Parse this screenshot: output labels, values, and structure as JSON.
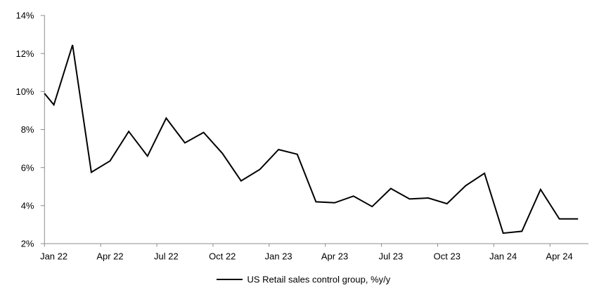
{
  "chart_data": {
    "type": "line",
    "title": "",
    "months": [
      "Jan 22",
      "Feb 22",
      "Mar 22",
      "Apr 22",
      "May 22",
      "Jun 22",
      "Jul 22",
      "Aug 22",
      "Sep 22",
      "Oct 22",
      "Nov 22",
      "Dec 22",
      "Jan 23",
      "Feb 23",
      "Mar 23",
      "Apr 23",
      "May 23",
      "Jun 23",
      "Jul 23",
      "Aug 23",
      "Sep 23",
      "Oct 23",
      "Nov 23",
      "Dec 23",
      "Jan 24",
      "Feb 24",
      "Mar 24",
      "Apr 24",
      "May 24"
    ],
    "series": [
      {
        "name": "US Retail sales control group, %y/y",
        "color": "#000000",
        "values": [
          9.3,
          12.45,
          5.75,
          6.35,
          7.9,
          6.6,
          8.6,
          7.3,
          7.85,
          6.75,
          5.3,
          5.9,
          6.95,
          6.7,
          4.2,
          4.15,
          4.5,
          3.95,
          4.9,
          4.35,
          4.4,
          4.1,
          5.05,
          5.7,
          2.55,
          2.65,
          4.85,
          3.3,
          3.3
        ]
      }
    ],
    "clipped_edge_value": 9.9,
    "x_tick_labels": [
      "Jan 22",
      "Apr 22",
      "Jul 22",
      "Oct 22",
      "Jan 23",
      "Apr 23",
      "Jul 23",
      "Oct 23",
      "Jan 24",
      "Apr 24"
    ],
    "y_tick_labels": [
      "2%",
      "4%",
      "6%",
      "8%",
      "10%",
      "12%",
      "14%"
    ],
    "ylim": [
      2,
      14
    ],
    "y_tick_step": 2,
    "x_tick_every_months": 3,
    "grid": false,
    "legend": {
      "position": "bottom-center",
      "label": "US Retail sales control group, %y/y"
    },
    "colors": {
      "line": "#000000",
      "axis": "#8c8c8c",
      "text": "#000000",
      "background": "#ffffff"
    }
  }
}
